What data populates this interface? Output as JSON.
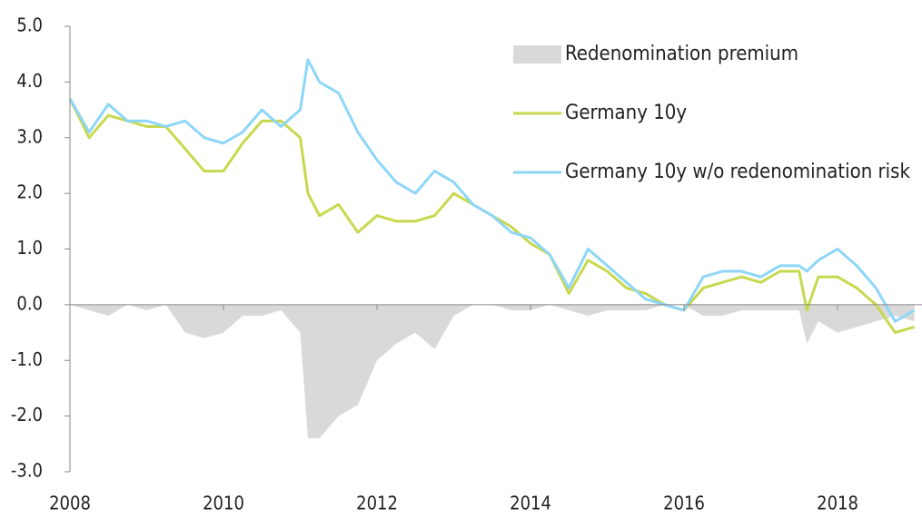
{
  "chart_data": {
    "type": "line",
    "x": [
      2008,
      2008.25,
      2008.5,
      2008.75,
      2009,
      2009.25,
      2009.5,
      2009.75,
      2010,
      2010.25,
      2010.5,
      2010.75,
      2011,
      2011.1,
      2011.25,
      2011.5,
      2011.75,
      2012,
      2012.25,
      2012.5,
      2012.75,
      2013,
      2013.25,
      2013.5,
      2013.75,
      2014,
      2014.25,
      2014.5,
      2014.75,
      2015,
      2015.25,
      2015.5,
      2015.75,
      2016,
      2016.25,
      2016.5,
      2016.75,
      2017,
      2017.25,
      2017.5,
      2017.6,
      2017.75,
      2018,
      2018.25,
      2018.5,
      2018.75,
      2019
    ],
    "series": [
      {
        "name": "Redenomination premium",
        "kind": "area",
        "color": "#d9d9d9",
        "values": [
          0,
          -0.1,
          -0.2,
          0,
          -0.1,
          0,
          -0.5,
          -0.6,
          -0.5,
          -0.2,
          -0.2,
          -0.1,
          -0.5,
          -2.4,
          -2.4,
          -2.0,
          -1.8,
          -1.0,
          -0.7,
          -0.5,
          -0.8,
          -0.2,
          0,
          0,
          -0.1,
          -0.1,
          0,
          -0.1,
          -0.2,
          -0.1,
          -0.1,
          -0.1,
          0,
          0,
          -0.2,
          -0.2,
          -0.1,
          -0.1,
          -0.1,
          -0.1,
          -0.7,
          -0.3,
          -0.5,
          -0.4,
          -0.3,
          -0.2,
          -0.3
        ]
      },
      {
        "name": "Germany 10y",
        "kind": "line",
        "color": "#c8d84e",
        "values": [
          3.7,
          3.0,
          3.4,
          3.3,
          3.2,
          3.2,
          2.8,
          2.4,
          2.4,
          2.9,
          3.3,
          3.3,
          3.0,
          2.0,
          1.6,
          1.8,
          1.3,
          1.6,
          1.5,
          1.5,
          1.6,
          2.0,
          1.8,
          1.6,
          1.4,
          1.1,
          0.9,
          0.2,
          0.8,
          0.6,
          0.3,
          0.2,
          0.0,
          -0.1,
          0.3,
          0.4,
          0.5,
          0.4,
          0.6,
          0.6,
          -0.1,
          0.5,
          0.5,
          0.3,
          0.0,
          -0.5,
          -0.4
        ]
      },
      {
        "name": "Germany 10y w/o redenomination risk",
        "kind": "line",
        "color": "#8ed6f7",
        "values": [
          3.7,
          3.1,
          3.6,
          3.3,
          3.3,
          3.2,
          3.3,
          3.0,
          2.9,
          3.1,
          3.5,
          3.2,
          3.5,
          4.4,
          4.0,
          3.8,
          3.1,
          2.6,
          2.2,
          2.0,
          2.4,
          2.2,
          1.8,
          1.6,
          1.3,
          1.2,
          0.9,
          0.3,
          1.0,
          0.7,
          0.4,
          0.1,
          0.0,
          -0.1,
          0.5,
          0.6,
          0.6,
          0.5,
          0.7,
          0.7,
          0.6,
          0.8,
          1.0,
          0.7,
          0.3,
          -0.3,
          -0.1
        ]
      }
    ],
    "xlim": [
      2008,
      2019.1
    ],
    "xticks": [
      2008,
      2010,
      2012,
      2014,
      2016,
      2018
    ],
    "ylim": [
      -3,
      5
    ],
    "yticks": [
      {
        "value": 5,
        "label": "5.0"
      },
      {
        "value": 4,
        "label": "4.0"
      },
      {
        "value": 3,
        "label": "3.0"
      },
      {
        "value": 2,
        "label": "2.0"
      },
      {
        "value": 1,
        "label": "1.0"
      },
      {
        "value": 0,
        "label": "0.0"
      },
      {
        "value": -1,
        "label": "-1.0"
      },
      {
        "value": -2,
        "label": "-2.0"
      },
      {
        "value": -3,
        "label": "-3.0"
      }
    ],
    "legend": "top-right"
  }
}
